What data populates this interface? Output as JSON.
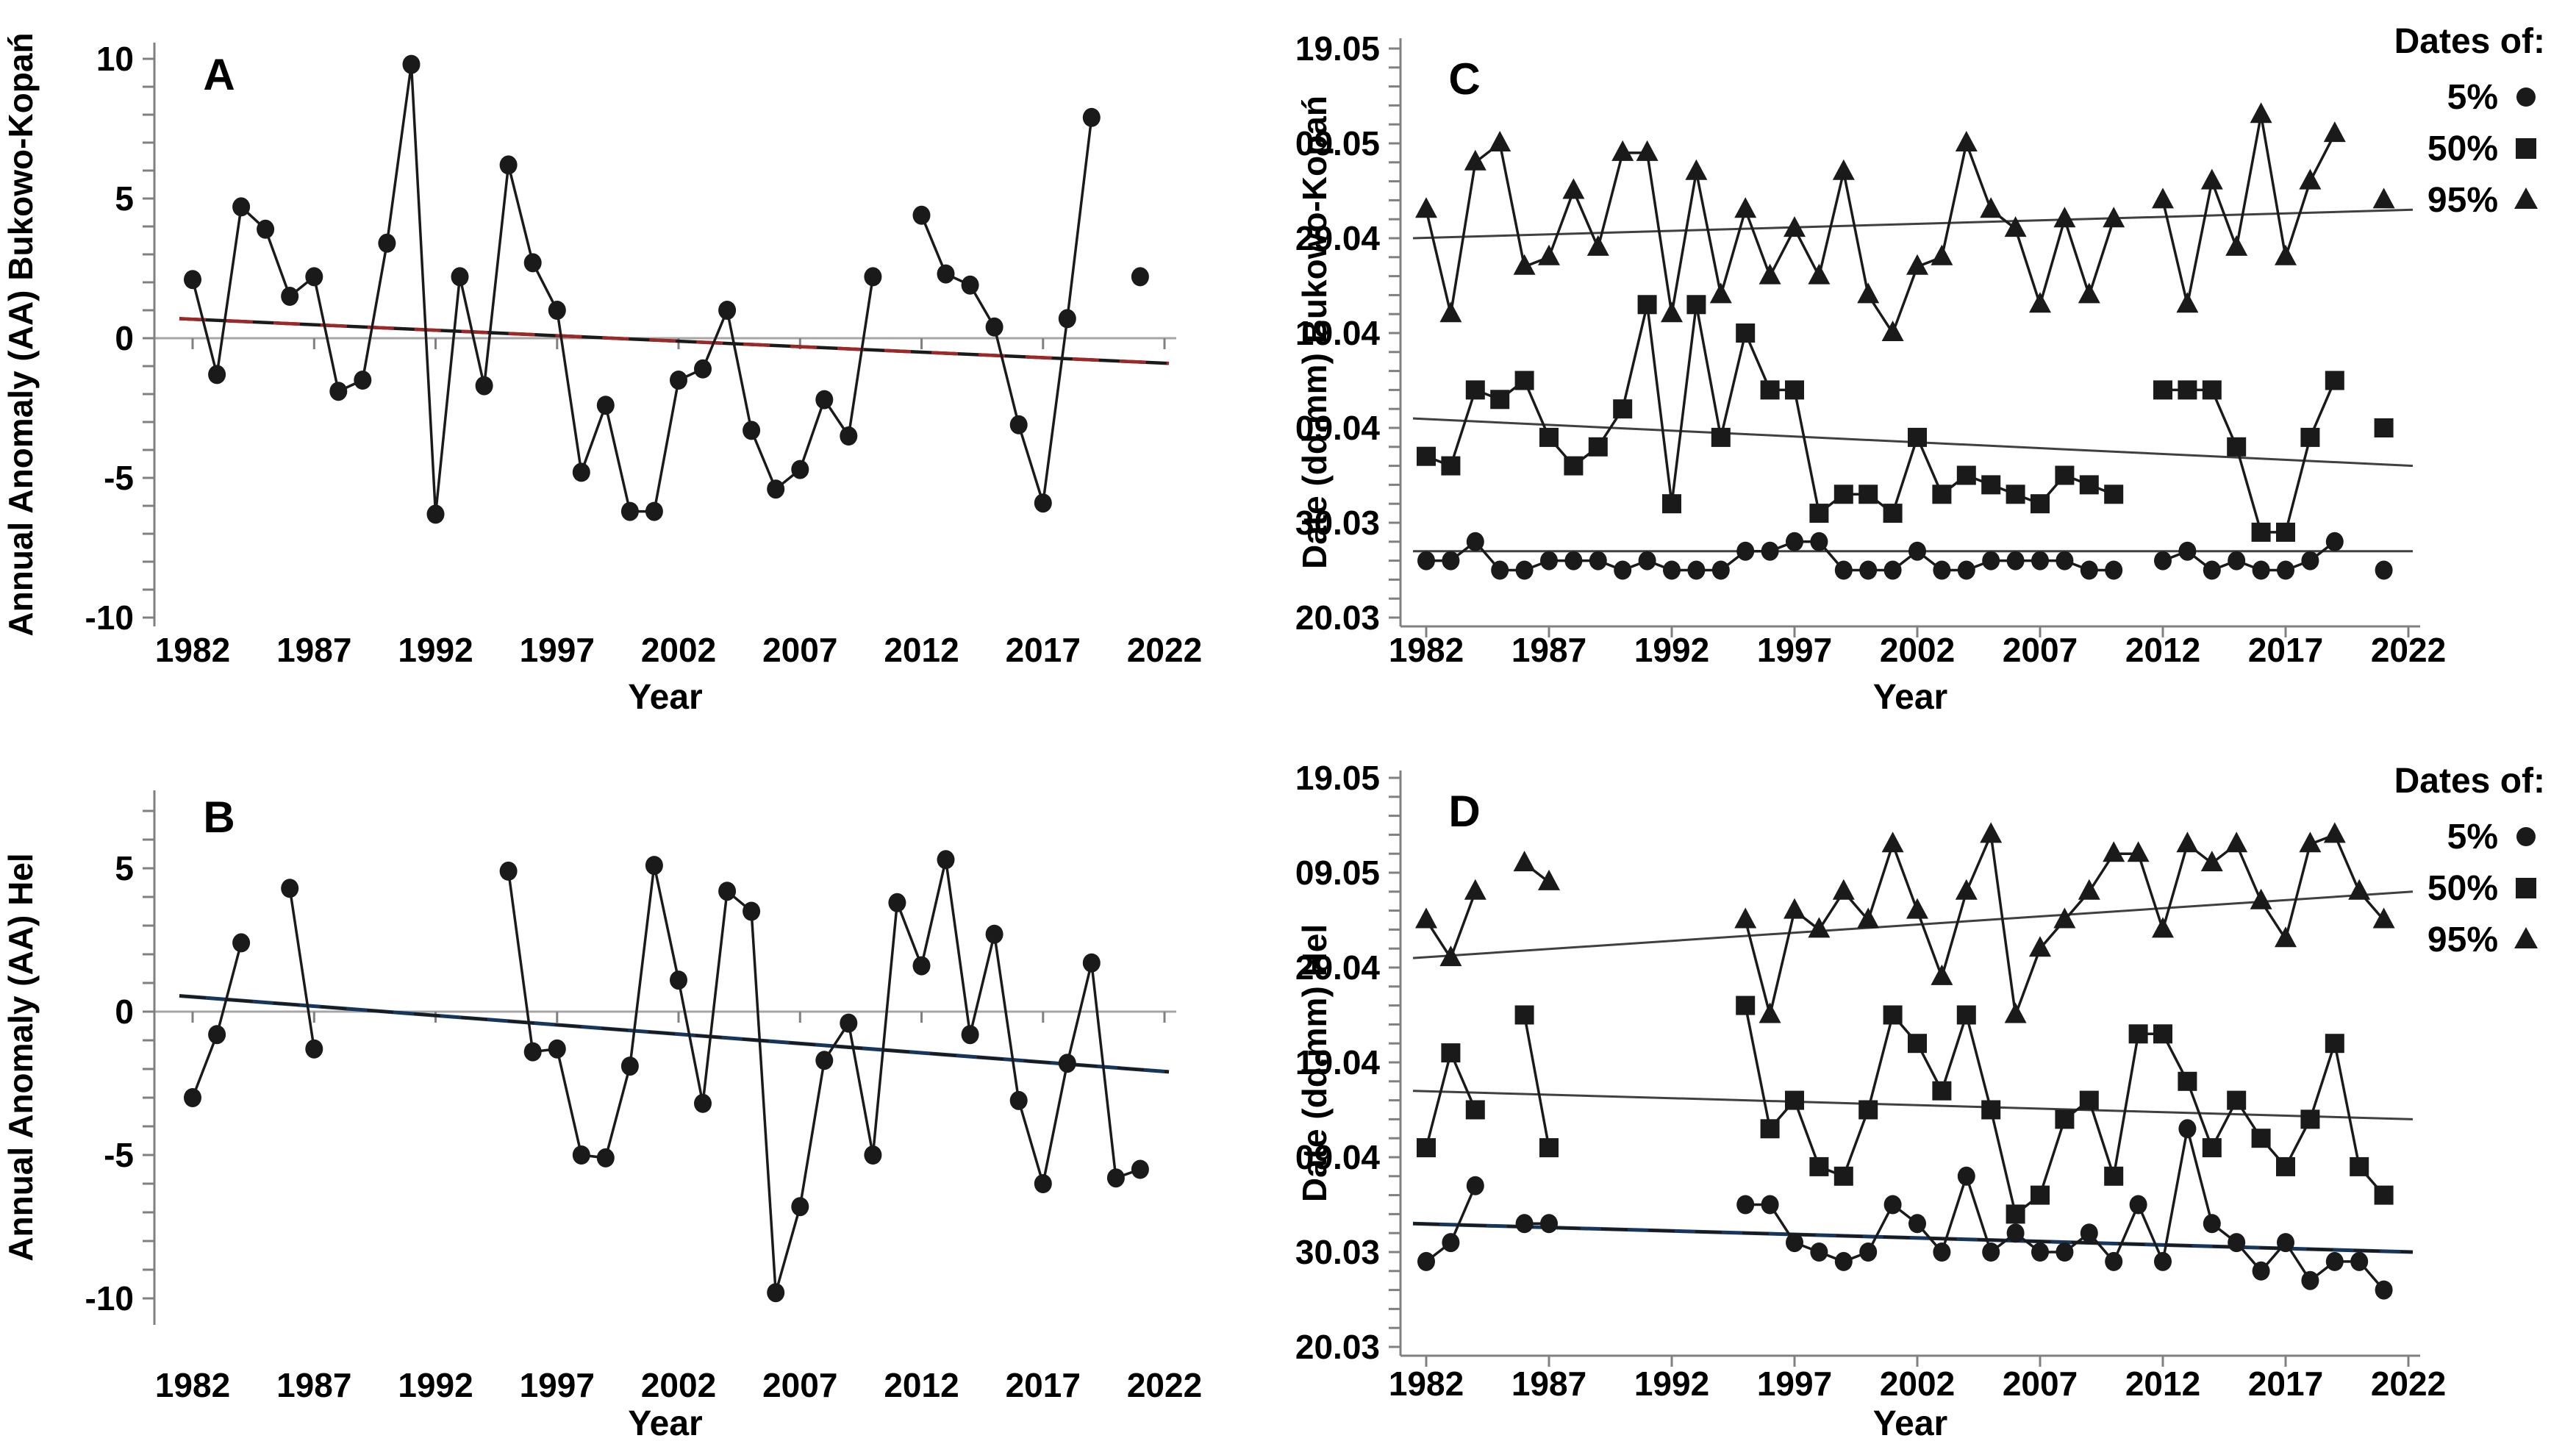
{
  "figure": {
    "background": "#ffffff",
    "description": "Four-panel time-series figure: annual anomalies and dates of 5%, 50%, 95% percentiles for Bukowo-Kopan and Hel"
  },
  "colors": {
    "data": "#1a1a1a",
    "trend_red": "#9e2727",
    "trend_navy": "#17365d",
    "thin_trend": "#404040",
    "zero_line": "#a6a6a6",
    "axis": "#808080",
    "text": "#000000",
    "background": "#ffffff"
  },
  "x_axis": {
    "label": "Year",
    "tick_years": [
      1982,
      1987,
      1992,
      1997,
      2002,
      2007,
      2012,
      2017,
      2022
    ]
  },
  "legend": {
    "title": "Dates of:",
    "items": [
      {
        "label": "5%",
        "marker": "circle"
      },
      {
        "label": "50%",
        "marker": "square"
      },
      {
        "label": "95%",
        "marker": "triangle"
      }
    ]
  },
  "chart_data": [
    {
      "id": "A",
      "panel_label": "A",
      "type": "line",
      "title": "",
      "xlabel": "Year",
      "ylabel": "Annual Anomaly (AA) Bukowo-Kopań",
      "ylim": [
        -10,
        10
      ],
      "xlim": [
        1982,
        2022
      ],
      "grid": false,
      "ytick_labels": [
        10,
        5,
        0,
        -5,
        -10
      ],
      "series": [
        {
          "name": "Annual anomaly Bukowo-Kopań",
          "marker": "circle",
          "values": {
            "1982": 2.1,
            "1983": -1.3,
            "1984": 4.7,
            "1985": 3.9,
            "1986": 1.5,
            "1987": 2.2,
            "1988": -1.9,
            "1989": -1.5,
            "1990": 3.4,
            "1991": 9.8,
            "1992": -6.3,
            "1993": 2.2,
            "1994": -1.7,
            "1995": 6.2,
            "1996": 2.7,
            "1997": 1.0,
            "1998": -4.8,
            "1999": -2.4,
            "2000": -6.2,
            "2001": -6.2,
            "2002": -1.5,
            "2003": -1.1,
            "2004": 1.0,
            "2005": -3.3,
            "2006": -5.4,
            "2007": -4.7,
            "2008": -2.2,
            "2009": -3.5,
            "2010": 2.2,
            "2012": 4.4,
            "2013": 2.3,
            "2014": 1.9,
            "2015": 0.4,
            "2016": -3.1,
            "2017": -5.9,
            "2018": 0.7,
            "2019": 7.9,
            "2021": 2.2
          }
        }
      ],
      "trends": [
        {
          "series": "Annual anomaly",
          "from": 0.7,
          "to": -0.9,
          "style": "black-red-dashed"
        }
      ]
    },
    {
      "id": "B",
      "panel_label": "B",
      "type": "line",
      "title": "",
      "xlabel": "Year",
      "ylabel": "Annual Anomaly (AA) Hel",
      "ylim": [
        -10,
        7
      ],
      "xlim": [
        1982,
        2022
      ],
      "grid": false,
      "ytick_labels": [
        5,
        0,
        -5,
        -10
      ],
      "series": [
        {
          "name": "Annual anomaly Hel",
          "marker": "circle",
          "values": {
            "1982": -3.0,
            "1983": -0.8,
            "1984": 2.4,
            "1986": 4.3,
            "1987": -1.3,
            "1995": 4.9,
            "1996": -1.4,
            "1997": -1.3,
            "1998": -5.0,
            "1999": -5.1,
            "2000": -1.9,
            "2001": 5.1,
            "2002": 1.1,
            "2003": -3.2,
            "2004": 4.2,
            "2005": 3.5,
            "2006": -9.8,
            "2007": -6.8,
            "2008": -1.7,
            "2009": -0.4,
            "2010": -5.0,
            "2011": 3.8,
            "2012": 1.6,
            "2013": 5.3,
            "2014": -0.8,
            "2015": 2.7,
            "2016": -3.1,
            "2017": -6.0,
            "2018": -1.8,
            "2019": 1.7,
            "2020": -5.8,
            "2021": -5.5
          }
        }
      ],
      "trends": [
        {
          "series": "Annual anomaly",
          "from": 0.55,
          "to": -2.1,
          "style": "navy-black-dashed"
        }
      ]
    },
    {
      "id": "C",
      "panel_label": "C",
      "type": "line",
      "title": "",
      "xlabel": "Year",
      "ylabel": "Date (dd.mm) Bukowo-Kopań",
      "ylim_dates": [
        "20.03",
        "19.05"
      ],
      "xlim": [
        1982,
        2022
      ],
      "grid": false,
      "has_legend": true,
      "ytick_labels": [
        "19.05",
        "09.05",
        "29.04",
        "19.04",
        "09.04",
        "30.03",
        "20.03"
      ],
      "series": [
        {
          "name": "5%",
          "marker": "circle",
          "values": {
            "1982": "26.03",
            "1983": "26.03",
            "1984": "28.03",
            "1985": "25.03",
            "1986": "25.03",
            "1987": "26.03",
            "1988": "26.03",
            "1989": "26.03",
            "1990": "25.03",
            "1991": "26.03",
            "1992": "25.03",
            "1993": "25.03",
            "1994": "25.03",
            "1995": "27.03",
            "1996": "27.03",
            "1997": "28.03",
            "1998": "28.03",
            "1999": "25.03",
            "2000": "25.03",
            "2001": "25.03",
            "2002": "27.03",
            "2003": "25.03",
            "2004": "25.03",
            "2005": "26.03",
            "2006": "26.03",
            "2007": "26.03",
            "2008": "26.03",
            "2009": "25.03",
            "2010": "25.03",
            "2012": "26.03",
            "2013": "27.03",
            "2014": "25.03",
            "2015": "26.03",
            "2016": "25.03",
            "2017": "25.03",
            "2018": "26.03",
            "2019": "28.03",
            "2021": "25.03"
          }
        },
        {
          "name": "50%",
          "marker": "square",
          "values": {
            "1982": "06.04",
            "1983": "05.04",
            "1984": "13.04",
            "1985": "12.04",
            "1986": "14.04",
            "1987": "08.04",
            "1988": "05.04",
            "1989": "07.04",
            "1990": "11.04",
            "1991": "22.04",
            "1992": "01.04",
            "1993": "22.04",
            "1994": "08.04",
            "1995": "19.04",
            "1996": "13.04",
            "1997": "13.04",
            "1998": "31.03",
            "1999": "02.04",
            "2000": "02.04",
            "2001": "31.03",
            "2002": "08.04",
            "2003": "02.04",
            "2004": "04.04",
            "2005": "03.04",
            "2006": "02.04",
            "2007": "01.04",
            "2008": "04.04",
            "2009": "03.04",
            "2010": "02.04",
            "2012": "13.04",
            "2013": "13.04",
            "2014": "13.04",
            "2015": "07.04",
            "2016": "29.03",
            "2017": "29.03",
            "2018": "08.04",
            "2019": "14.04",
            "2021": "09.04"
          }
        },
        {
          "name": "95%",
          "marker": "triangle",
          "values": {
            "1982": "02.05",
            "1983": "21.04",
            "1984": "07.05",
            "1985": "09.05",
            "1986": "26.04",
            "1987": "27.04",
            "1988": "04.05",
            "1989": "28.04",
            "1990": "08.05",
            "1991": "08.05",
            "1992": "21.04",
            "1993": "06.05",
            "1994": "23.04",
            "1995": "02.05",
            "1996": "25.04",
            "1997": "30.04",
            "1998": "25.04",
            "1999": "06.05",
            "2000": "23.04",
            "2001": "19.04",
            "2002": "26.04",
            "2003": "27.04",
            "2004": "09.05",
            "2005": "02.05",
            "2006": "30.04",
            "2007": "22.04",
            "2008": "01.05",
            "2009": "23.04",
            "2010": "01.05",
            "2012": "03.05",
            "2013": "22.04",
            "2014": "05.05",
            "2015": "28.04",
            "2016": "12.05",
            "2017": "27.04",
            "2018": "05.05",
            "2019": "10.05",
            "2021": "03.05"
          }
        }
      ],
      "trends": [
        {
          "series": "5%",
          "from": "27.03",
          "to": "27.03",
          "style": "thin-black"
        },
        {
          "series": "50%",
          "from": "10.04",
          "to": "05.04",
          "style": "thin-black"
        },
        {
          "series": "95%",
          "from": "29.04",
          "to": "02.05",
          "style": "thin-black"
        }
      ]
    },
    {
      "id": "D",
      "panel_label": "D",
      "type": "line",
      "title": "",
      "xlabel": "Year",
      "ylabel": "Date (dd.mm) Hel",
      "ylim_dates": [
        "20.03",
        "19.05"
      ],
      "xlim": [
        1982,
        2022
      ],
      "grid": false,
      "has_legend": true,
      "ytick_labels": [
        "19.05",
        "09.05",
        "29.04",
        "19.04",
        "09.04",
        "30.03",
        "20.03"
      ],
      "series": [
        {
          "name": "5%",
          "marker": "circle",
          "values": {
            "1982": "29.03",
            "1983": "31.03",
            "1984": "06.04",
            "1986": "02.04",
            "1987": "02.04",
            "1995": "04.04",
            "1996": "04.04",
            "1997": "31.03",
            "1998": "30.03",
            "1999": "29.03",
            "2000": "30.03",
            "2001": "04.04",
            "2002": "02.04",
            "2003": "30.03",
            "2004": "07.04",
            "2005": "30.03",
            "2006": "01.04",
            "2007": "30.03",
            "2008": "30.03",
            "2009": "01.04",
            "2010": "29.03",
            "2011": "04.04",
            "2012": "29.03",
            "2013": "12.04",
            "2014": "02.04",
            "2015": "31.03",
            "2016": "28.03",
            "2017": "31.03",
            "2018": "27.03",
            "2019": "29.03",
            "2020": "29.03",
            "2021": "26.03"
          }
        },
        {
          "name": "50%",
          "marker": "square",
          "values": {
            "1982": "10.04",
            "1983": "20.04",
            "1984": "14.04",
            "1986": "24.04",
            "1987": "10.04",
            "1995": "25.04",
            "1996": "12.04",
            "1997": "15.04",
            "1998": "08.04",
            "1999": "07.04",
            "2000": "14.04",
            "2001": "24.04",
            "2002": "21.04",
            "2003": "16.04",
            "2004": "24.04",
            "2005": "14.04",
            "2006": "03.04",
            "2007": "05.04",
            "2008": "13.04",
            "2009": "15.04",
            "2010": "07.04",
            "2011": "22.04",
            "2012": "22.04",
            "2013": "17.04",
            "2014": "10.04",
            "2015": "15.04",
            "2016": "11.04",
            "2017": "08.04",
            "2018": "13.04",
            "2019": "21.04",
            "2020": "08.04",
            "2021": "05.04"
          }
        },
        {
          "name": "95%",
          "marker": "triangle",
          "values": {
            "1982": "04.05",
            "1983": "30.04",
            "1984": "07.05",
            "1986": "10.05",
            "1987": "08.05",
            "1995": "04.05",
            "1996": "24.04",
            "1997": "05.05",
            "1998": "03.05",
            "1999": "07.05",
            "2000": "04.05",
            "2001": "12.05",
            "2002": "05.05",
            "2003": "28.04",
            "2004": "07.05",
            "2005": "13.05",
            "2006": "24.04",
            "2007": "01.05",
            "2008": "04.05",
            "2009": "07.05",
            "2010": "11.05",
            "2011": "11.05",
            "2012": "03.05",
            "2013": "12.05",
            "2014": "10.05",
            "2015": "12.05",
            "2016": "06.05",
            "2017": "02.05",
            "2018": "12.05",
            "2019": "13.05",
            "2020": "07.05",
            "2021": "04.05"
          }
        }
      ],
      "trends": [
        {
          "series": "5%",
          "from": "02.04",
          "to": "30.03",
          "style": "navy-black-dashed"
        },
        {
          "series": "50%",
          "from": "16.04",
          "to": "13.04",
          "style": "thin-black"
        },
        {
          "series": "95%",
          "from": "30.04",
          "to": "07.05",
          "style": "thin-black"
        }
      ]
    }
  ]
}
